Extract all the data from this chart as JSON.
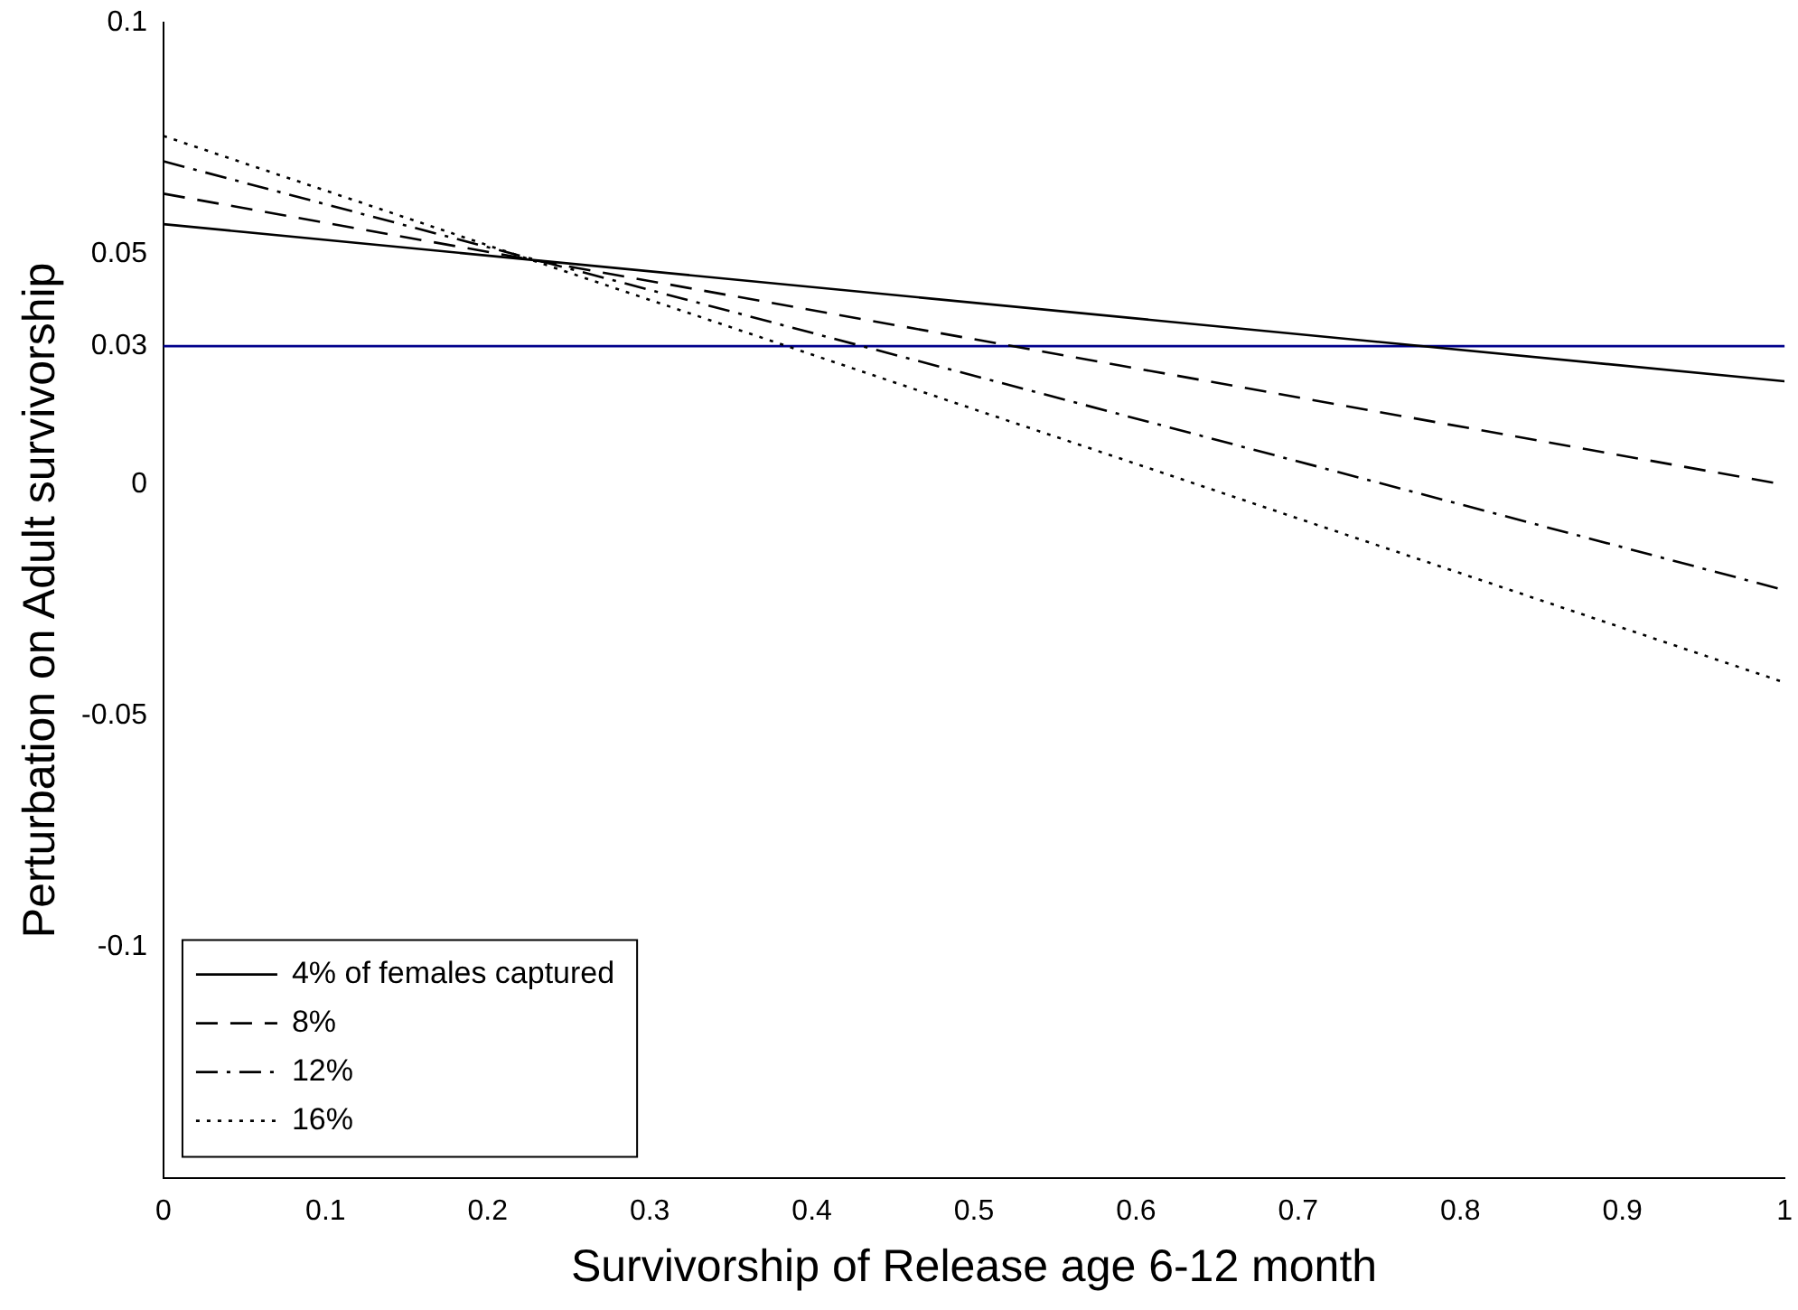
{
  "chart_data": {
    "type": "line",
    "xlabel": "Survivorship of Release age 6-12 month",
    "ylabel": "Perturbation on Adult survivorship",
    "x": [
      0,
      1
    ],
    "xlim": [
      0,
      1
    ],
    "ylim": [
      -0.15,
      0.1
    ],
    "xticks": [
      0,
      0.1,
      0.2,
      0.3,
      0.4,
      0.5,
      0.6,
      0.7,
      0.8,
      0.9,
      1
    ],
    "yticks": [
      -0.1,
      -0.05,
      0,
      0.03,
      0.05,
      0.1
    ],
    "grid": false,
    "legend": "bottom left",
    "marker": "none",
    "ref_lines": [
      {
        "axis": "y",
        "value": 0.03,
        "color": "#00008b",
        "line_style": "solid"
      }
    ],
    "series": [
      {
        "name": "4% of females captured",
        "color": "#000000",
        "line_style": "solid",
        "values": [
          0.0564,
          0.0224
        ]
      },
      {
        "name": "8%",
        "color": "#000000",
        "line_style": "dashed",
        "values": [
          0.063,
          0.0
        ]
      },
      {
        "name": "12%",
        "color": "#000000",
        "line_style": "dashdot",
        "values": [
          0.07,
          -0.0228
        ]
      },
      {
        "name": "16%",
        "color": "#000000",
        "line_style": "dotted",
        "values": [
          0.0755,
          -0.0428
        ]
      }
    ]
  }
}
